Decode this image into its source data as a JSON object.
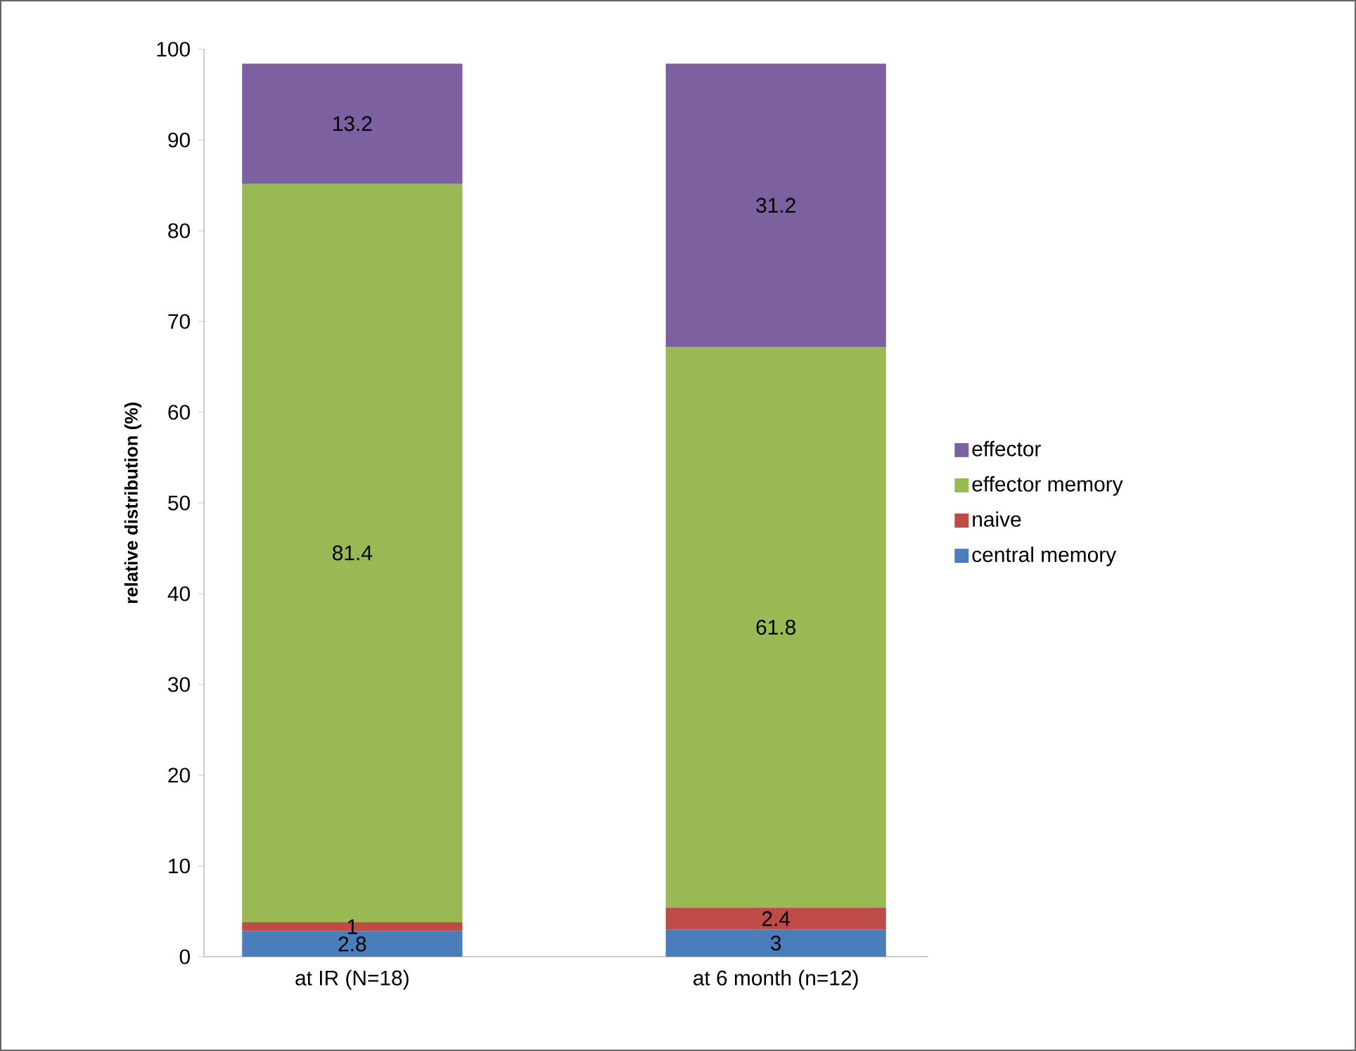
{
  "chart_data": {
    "type": "bar",
    "stacked": true,
    "ylabel": "relative distribution (%)",
    "categories": [
      "at IR (N=18)",
      "at 6 month (n=12)"
    ],
    "series": [
      {
        "name": "central memory",
        "color": "#4a7ebb",
        "values": [
          2.8,
          3
        ]
      },
      {
        "name": "naive",
        "color": "#be4b48",
        "values": [
          1,
          2.4
        ]
      },
      {
        "name": "effector memory",
        "color": "#98b954",
        "values": [
          81.4,
          61.8
        ]
      },
      {
        "name": "effector",
        "color": "#7d60a0",
        "values": [
          13.2,
          31.2
        ]
      }
    ],
    "ylim": [
      0,
      100
    ],
    "yticks": [
      0,
      10,
      20,
      30,
      40,
      50,
      60,
      70,
      80,
      90,
      100
    ],
    "data_labels": true,
    "legend": "right",
    "grid": false
  }
}
